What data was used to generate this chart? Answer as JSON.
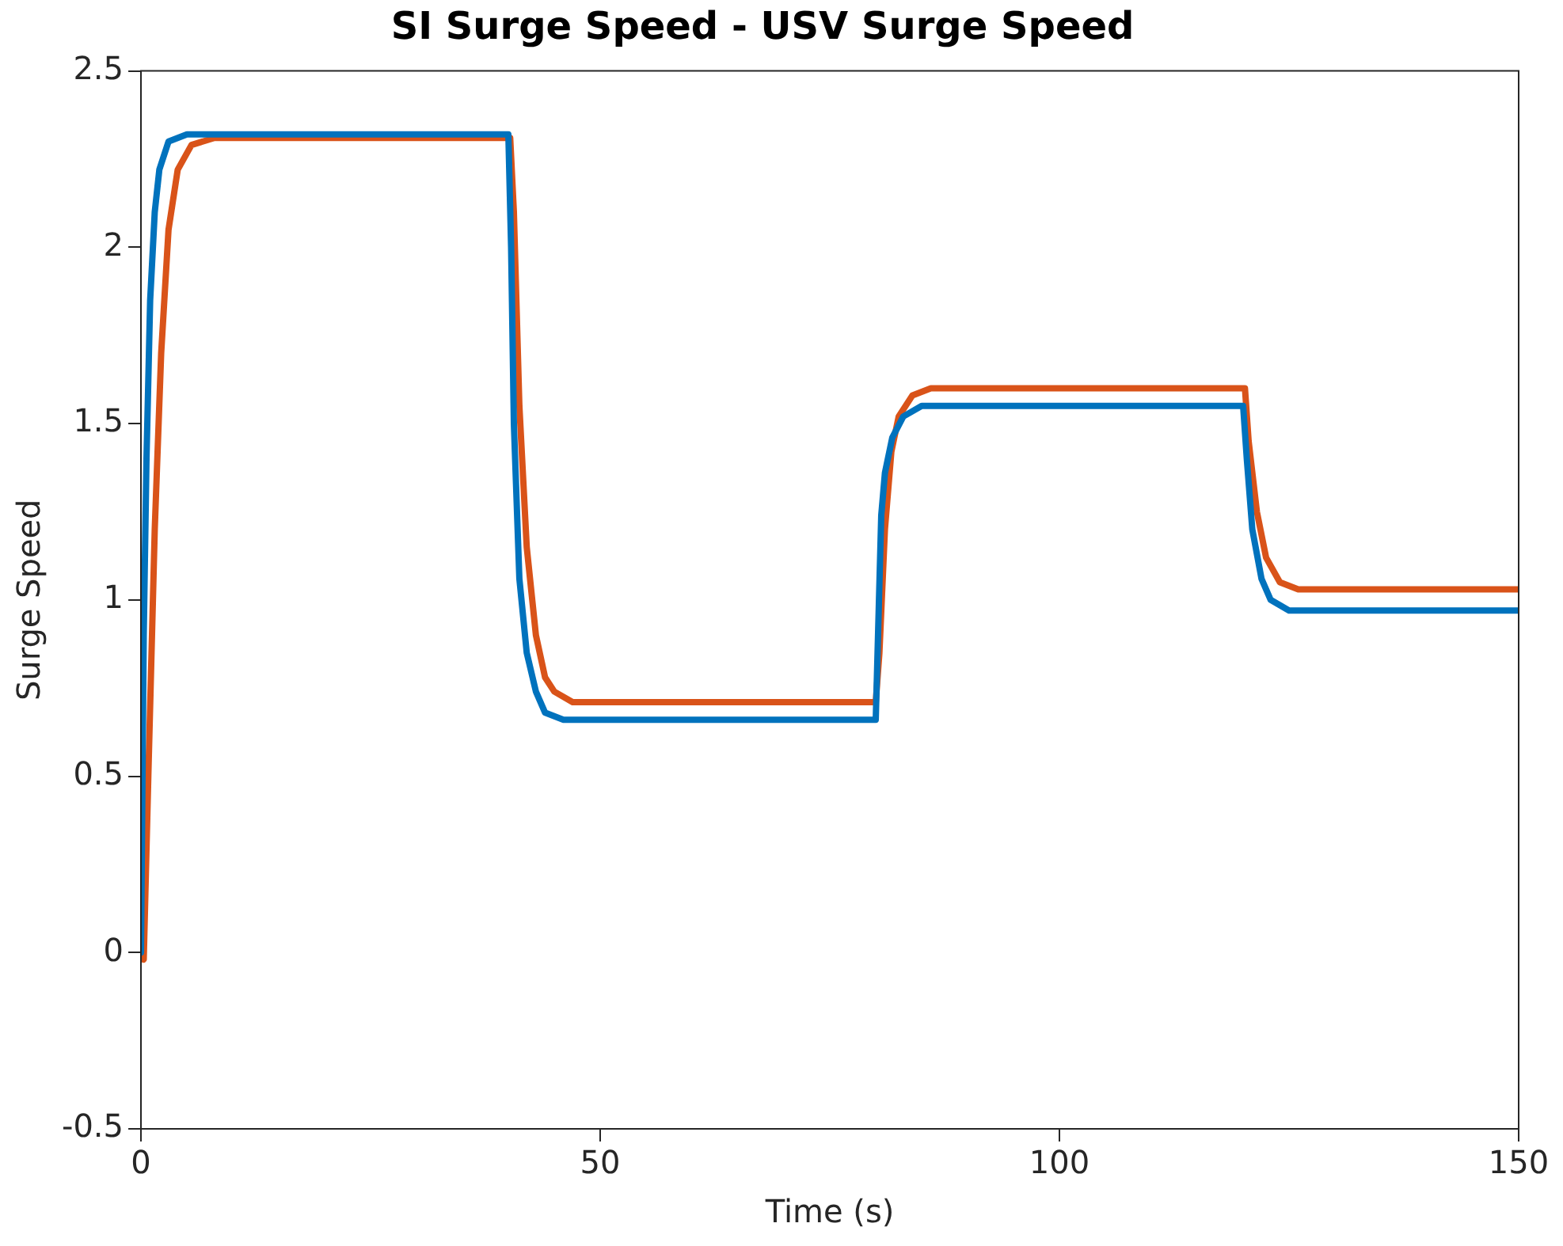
{
  "chart_data": {
    "type": "line",
    "title": "SI Surge Speed - USV Surge Speed",
    "xlabel": "Time (s)",
    "ylabel": "Surge Speed",
    "xlim": [
      0,
      150
    ],
    "xticks": [
      0,
      50,
      100,
      150
    ],
    "ylim": [
      -0.5,
      2.5
    ],
    "yticks": [
      -0.5,
      0,
      0.5,
      1,
      1.5,
      2,
      2.5
    ],
    "grid": false,
    "legend": false,
    "marker": "none",
    "line_style": "solid",
    "series": [
      {
        "color": "#0072bd",
        "x": [
          0,
          0.3,
          0.6,
          1,
          1.5,
          2,
          3,
          5,
          40,
          40.3,
          40.6,
          41.2,
          42,
          43,
          44,
          46,
          80,
          80.3,
          80.6,
          81,
          81.8,
          83,
          85,
          120,
          120.4,
          121,
          122,
          123,
          125,
          150
        ],
        "values": [
          0,
          0.9,
          1.4,
          1.85,
          2.1,
          2.22,
          2.3,
          2.32,
          2.32,
          2.0,
          1.5,
          1.06,
          0.85,
          0.74,
          0.68,
          0.66,
          0.66,
          0.95,
          1.24,
          1.36,
          1.46,
          1.52,
          1.55,
          1.55,
          1.4,
          1.2,
          1.06,
          1.0,
          0.97,
          0.97
        ]
      },
      {
        "color": "#d95319",
        "x": [
          0,
          0.3,
          0.8,
          1.5,
          2.2,
          3,
          4,
          5.5,
          8,
          40.2,
          40.6,
          41.2,
          42,
          43,
          44,
          45,
          47,
          80,
          80.4,
          81,
          81.7,
          82.5,
          84,
          86,
          120.2,
          120.6,
          121.5,
          122.5,
          124,
          126,
          150
        ],
        "values": [
          0,
          -0.02,
          0.5,
          1.2,
          1.7,
          2.05,
          2.22,
          2.29,
          2.31,
          2.31,
          2.1,
          1.55,
          1.15,
          0.9,
          0.78,
          0.74,
          0.71,
          0.71,
          0.85,
          1.2,
          1.42,
          1.52,
          1.58,
          1.6,
          1.6,
          1.45,
          1.25,
          1.12,
          1.05,
          1.03,
          1.03
        ]
      }
    ]
  }
}
